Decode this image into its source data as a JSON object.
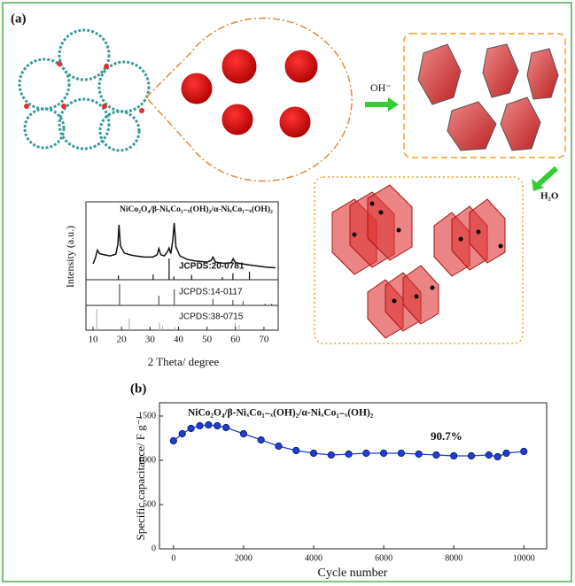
{
  "figure": {
    "panel_a": "(a)",
    "panel_b": "(b)",
    "arrow_labels": [
      "OH⁻",
      "H₂O"
    ]
  },
  "chart_data": [
    {
      "type": "xrd",
      "title": "NiCo₂O₄/β-NiₓCo₁₋ₓ(OH)₂/α-NiₓCo₁₋ₓ(OH)₂",
      "x_label": "2 Theta/ degree",
      "y_label": "Intensity (a.u.)",
      "xlim": [
        7.5,
        75
      ],
      "xticks": [
        10,
        20,
        30,
        40,
        50,
        60,
        70
      ],
      "ylim": [
        0,
        100
      ],
      "color": "#111111",
      "x": [
        10,
        10.8,
        11.5,
        12.3,
        14,
        16,
        18,
        18.7,
        19.1,
        19.6,
        21,
        23,
        25,
        28,
        31,
        32.5,
        33.1,
        33.8,
        35,
        36.2,
        36.7,
        37.3,
        38,
        38.5,
        39.1,
        40.5,
        43,
        46,
        50,
        51.5,
        52.1,
        53,
        56,
        58.5,
        59.2,
        60,
        62.5,
        65,
        68,
        71,
        74
      ],
      "values": [
        28,
        38,
        52,
        46,
        44,
        42,
        45,
        62,
        97,
        60,
        47,
        44,
        42,
        40,
        40,
        44,
        55,
        44,
        42,
        50,
        56,
        46,
        70,
        100,
        58,
        42,
        36,
        33,
        31,
        34,
        40,
        31,
        29,
        30,
        37,
        30,
        28,
        26,
        24,
        22,
        21
      ],
      "series": [
        {
          "name": "JCPDS:20-0781",
          "color": "#111111",
          "x": [
            18.9,
            31.1,
            36.7,
            38.4,
            44.6,
            55.4,
            59.1,
            64.9
          ],
          "values": [
            20,
            25,
            100,
            15,
            22,
            12,
            30,
            38
          ]
        },
        {
          "name": "JCPDS:14-0117",
          "color": "#555555",
          "x": [
            19.3,
            33.1,
            38.5,
            52.1,
            59.1,
            62.7,
            70.4,
            72.7
          ],
          "values": [
            100,
            45,
            75,
            30,
            25,
            20,
            8,
            8
          ]
        },
        {
          "name": "JCPDS:38-0715",
          "color": "#b8b8b8",
          "x": [
            11.3,
            22.7,
            33.4,
            34.4,
            38.8,
            59.9,
            61.3
          ],
          "values": [
            100,
            55,
            35,
            22,
            15,
            35,
            25
          ]
        }
      ]
    },
    {
      "type": "line",
      "title": "NiCo₂O₄/β-NiₓCo₁₋ₓ(OH)₂/α-NiₓCo₁₋ₓ(OH)₂",
      "x_label": "Cycle number",
      "y_label": "Specific capacitance/ F g⁻¹",
      "annotation": "90.7%",
      "xlim": [
        -400,
        10650
      ],
      "xticks": [
        0,
        2000,
        4000,
        6000,
        8000,
        10000
      ],
      "ylim": [
        0,
        1650
      ],
      "yticks": [
        0,
        500,
        1000,
        1500
      ],
      "color": "#1f3fd0",
      "x": [
        0,
        250,
        500,
        750,
        1000,
        1250,
        1500,
        2000,
        2500,
        3000,
        3500,
        4000,
        4500,
        5000,
        5500,
        6000,
        6500,
        7000,
        7500,
        8000,
        8500,
        9000,
        9250,
        9500,
        10000
      ],
      "values": [
        1220,
        1300,
        1360,
        1390,
        1400,
        1390,
        1370,
        1300,
        1230,
        1160,
        1110,
        1080,
        1060,
        1070,
        1080,
        1080,
        1080,
        1070,
        1060,
        1050,
        1050,
        1060,
        1040,
        1080,
        1100
      ]
    }
  ]
}
